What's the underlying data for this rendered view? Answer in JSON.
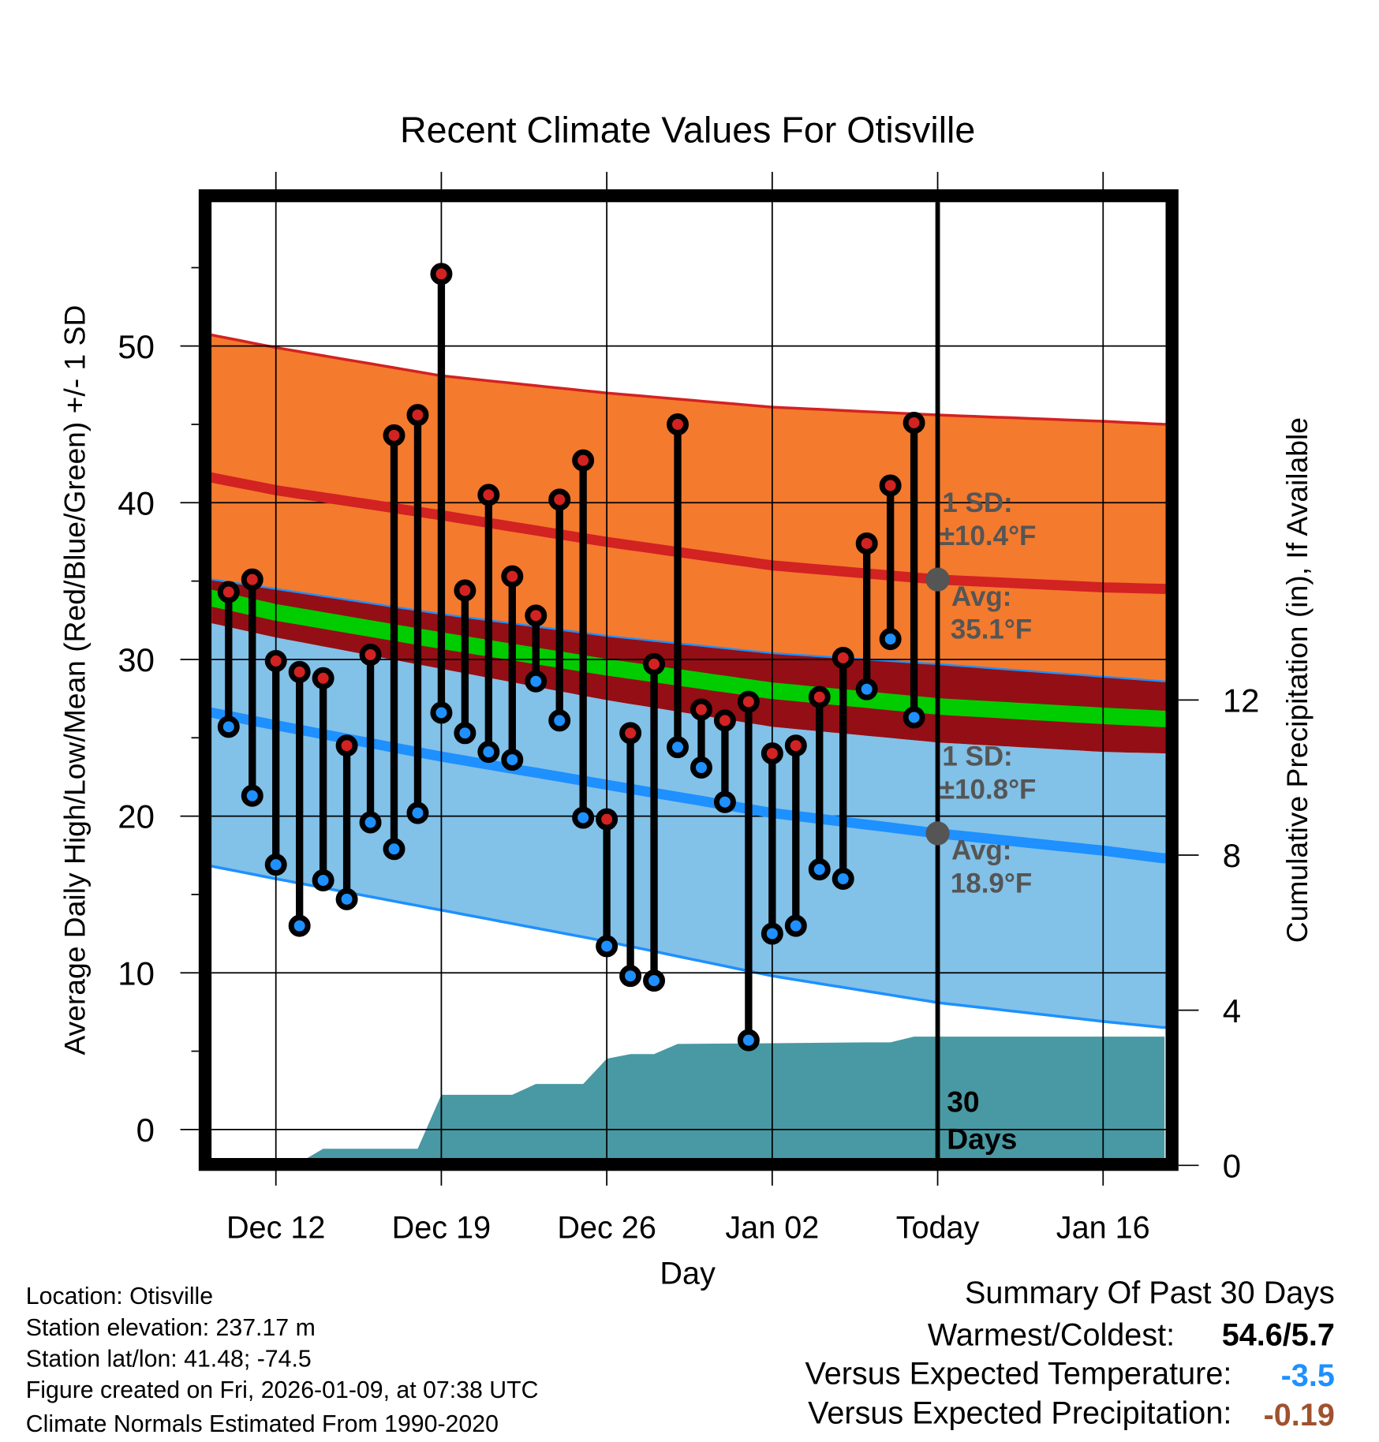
{
  "chart_data": {
    "type": "line",
    "title": "Recent Climate Values For Otisville",
    "xlabel": "Day",
    "ylabel": "Average Daily High/Low/Mean (Red/Blue/Green) +/- 1 SD",
    "y2label": "Cumulative Precipitation (in), If Available",
    "ylim": [
      -1.8,
      59.2
    ],
    "y2lim": [
      0,
      23.2
    ],
    "xlim_days_from_dec12": [
      -2.7,
      37.6
    ],
    "grid": true,
    "yticks": [
      0,
      10,
      20,
      30,
      40,
      50
    ],
    "y2ticks": [
      0,
      4,
      8,
      12
    ],
    "xticks": [
      {
        "day": 0,
        "label": "Dec 12"
      },
      {
        "day": 7,
        "label": "Dec 19"
      },
      {
        "day": 14,
        "label": "Dec 26"
      },
      {
        "day": 21,
        "label": "Jan 02"
      },
      {
        "day": 28,
        "label": "Today"
      },
      {
        "day": 35,
        "label": "Jan 16"
      }
    ],
    "observed": {
      "first_day": -2,
      "dates": [
        "Dec 10",
        "Dec 11",
        "Dec 12",
        "Dec 13",
        "Dec 14",
        "Dec 15",
        "Dec 16",
        "Dec 17",
        "Dec 18",
        "Dec 19",
        "Dec 20",
        "Dec 21",
        "Dec 22",
        "Dec 23",
        "Dec 24",
        "Dec 25",
        "Dec 26",
        "Dec 27",
        "Dec 28",
        "Dec 29",
        "Dec 30",
        "Dec 31",
        "Jan 01",
        "Jan 02",
        "Jan 03",
        "Jan 04",
        "Jan 05",
        "Jan 06",
        "Jan 07",
        "Jan 08"
      ],
      "high": [
        34.3,
        35.1,
        29.9,
        29.2,
        28.8,
        24.5,
        30.3,
        44.3,
        45.6,
        54.6,
        34.4,
        40.5,
        35.3,
        32.8,
        40.2,
        42.7,
        19.8,
        25.3,
        29.7,
        45.0,
        26.8,
        26.1,
        27.3,
        24.0,
        24.5,
        27.6,
        30.1,
        37.4,
        41.1,
        45.1
      ],
      "low": [
        25.7,
        21.3,
        16.9,
        13.0,
        15.9,
        14.7,
        19.6,
        17.9,
        20.2,
        26.6,
        25.3,
        24.1,
        23.6,
        28.6,
        26.1,
        19.9,
        11.7,
        9.8,
        9.5,
        24.4,
        23.1,
        20.9,
        5.7,
        12.5,
        13.0,
        16.6,
        16.0,
        28.1,
        31.3,
        26.3
      ]
    },
    "normals": {
      "days": [
        -2.7,
        0,
        7,
        14,
        21,
        28,
        35,
        37.6
      ],
      "high_plus_sd": [
        50.7,
        49.9,
        48.1,
        47.0,
        46.1,
        45.6,
        45.2,
        45.0
      ],
      "high_avg": [
        41.6,
        40.8,
        39.2,
        37.5,
        36.0,
        35.1,
        34.6,
        34.5
      ],
      "high_minus_sd": [
        32.3,
        31.4,
        29.4,
        27.4,
        25.7,
        24.7,
        24.1,
        24.0
      ],
      "low_plus_sd": [
        35.1,
        34.5,
        32.9,
        31.5,
        30.4,
        29.7,
        28.9,
        28.6
      ],
      "low_avg": [
        26.6,
        25.8,
        23.8,
        22.0,
        20.2,
        18.9,
        17.8,
        17.3
      ],
      "low_minus_sd": [
        16.8,
        16.0,
        14.0,
        12.0,
        9.8,
        8.1,
        6.9,
        6.5
      ],
      "mean": [
        33.9,
        33.0,
        31.2,
        29.5,
        28.0,
        27.0,
        26.4,
        26.2
      ]
    },
    "precip_cumulative": {
      "days": [
        -2.7,
        0.8,
        2,
        6,
        7,
        10,
        11,
        13,
        14,
        15,
        16,
        17,
        21,
        25,
        26,
        27,
        37.6
      ],
      "values": [
        0,
        0,
        0.43,
        0.43,
        1.82,
        1.82,
        2.1,
        2.1,
        2.75,
        2.87,
        2.87,
        3.13,
        3.15,
        3.17,
        3.17,
        3.32,
        3.32
      ]
    },
    "today_day": 28,
    "annotations": {
      "high_sd_label": "1 SD:",
      "high_sd_value": "±10.4°F",
      "high_avg_label": "Avg:",
      "high_avg_value": "35.1°F",
      "low_sd_label": "1 SD:",
      "low_sd_value": "±10.8°F",
      "low_avg_label": "Avg:",
      "low_avg_value": "18.9°F",
      "days_count": "30",
      "days_word": "Days"
    },
    "colors": {
      "high_band": "#f47a2e",
      "overlap_band": "#930f15",
      "low_band": "#82c1e8",
      "high_line": "#d22222",
      "low_line": "#1e90ff",
      "mean_line": "#00cc00",
      "precip": "#4899a3",
      "high_point": "#d22222",
      "low_point": "#1e90ff"
    }
  },
  "footer": {
    "location": "Location: Otisville",
    "elevation": "Station elevation: 237.17 m",
    "latlon": "Station lat/lon: 41.48; -74.5",
    "created": "Figure created on Fri, 2026-01-09, at 07:38 UTC",
    "normals": "Climate Normals Estimated From 1990-2020"
  },
  "summary": {
    "title": "Summary Of Past 30 Days",
    "warmest_label": "Warmest/Coldest:",
    "warmest_value": "54.6/5.7",
    "temp_label": "Versus Expected Temperature:",
    "temp_value": "-3.5",
    "precip_label": "Versus Expected Precipitation:",
    "precip_value": "-0.19",
    "temp_color": "#1e90ff",
    "precip_color": "#a0522d"
  }
}
